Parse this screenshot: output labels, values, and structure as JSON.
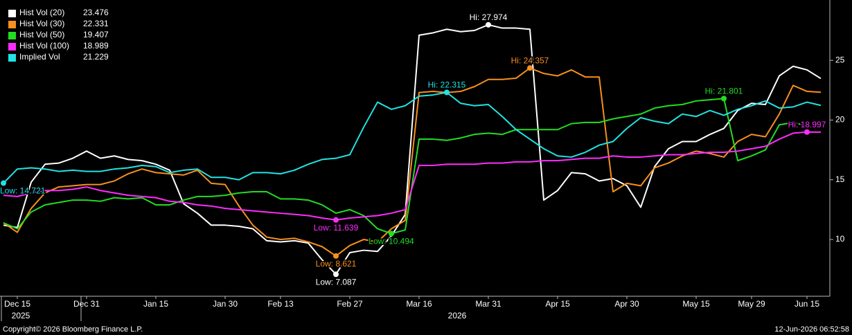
{
  "chart_data": {
    "type": "line",
    "categories": [
      null,
      "Dec 15",
      null,
      null,
      null,
      null,
      "Dec 31",
      null,
      null,
      null,
      null,
      "Jan 15",
      null,
      null,
      null,
      null,
      "Jan 30",
      null,
      null,
      null,
      "Feb 13",
      null,
      null,
      null,
      null,
      "Feb 27",
      null,
      null,
      null,
      null,
      "Mar 16",
      null,
      null,
      null,
      null,
      "Mar 31",
      null,
      null,
      null,
      null,
      "Apr 15",
      null,
      null,
      null,
      null,
      "Apr 30",
      null,
      null,
      null,
      null,
      "May 15",
      null,
      null,
      null,
      "May 29",
      null,
      null,
      null,
      "Jun 15",
      null
    ],
    "year_labels": [
      "2025",
      "2026"
    ],
    "ylim": [
      5.25,
      30.05
    ],
    "yticks": [
      10,
      15,
      20,
      25
    ],
    "series": [
      {
        "name": "Hist Vol (20)",
        "color": "#ffffff",
        "values": [
          11.2,
          11.0,
          14.8,
          16.3,
          16.4,
          16.8,
          17.4,
          16.8,
          17.0,
          16.7,
          16.6,
          16.3,
          15.8,
          13.0,
          12.2,
          11.2,
          11.2,
          11.1,
          10.9,
          9.9,
          9.8,
          9.9,
          9.7,
          8.3,
          7.087,
          8.9,
          9.1,
          9.0,
          10.3,
          12.1,
          27.1,
          27.3,
          27.6,
          27.4,
          27.5,
          27.974,
          27.7,
          27.7,
          27.6,
          13.3,
          14.1,
          15.6,
          15.5,
          14.9,
          15.1,
          14.5,
          12.7,
          16.1,
          17.6,
          18.2,
          18.2,
          18.8,
          19.3,
          20.8,
          21.4,
          21.3,
          23.7,
          24.5,
          24.2,
          23.476
        ],
        "value_labels": [
          null,
          null,
          null,
          null,
          null,
          null,
          null,
          null,
          null,
          null,
          null,
          null,
          null,
          null,
          null,
          null,
          null,
          null,
          null,
          null,
          null,
          null,
          null,
          null,
          "Low: 7.087",
          null,
          null,
          null,
          null,
          null,
          null,
          null,
          null,
          null,
          null,
          "Hi: 27.974",
          null,
          null,
          null,
          null,
          null,
          null,
          null,
          null,
          null,
          null,
          null,
          null,
          null,
          null,
          null,
          null,
          null,
          null,
          null,
          null,
          null,
          null,
          null,
          null
        ]
      },
      {
        "name": "Hist Vol (30)",
        "color": "#f7901e",
        "values": [
          11.4,
          10.6,
          12.6,
          13.9,
          14.4,
          14.5,
          14.6,
          14.6,
          14.9,
          15.5,
          15.9,
          15.6,
          15.5,
          15.4,
          15.8,
          14.7,
          14.6,
          12.8,
          11.2,
          10.2,
          10.0,
          10.1,
          9.8,
          9.4,
          8.621,
          9.5,
          10.0,
          9.8,
          10.9,
          11.6,
          22.3,
          22.4,
          22.3,
          22.4,
          22.8,
          23.4,
          23.4,
          23.5,
          24.357,
          23.9,
          23.7,
          24.2,
          23.6,
          23.6,
          14.0,
          14.7,
          14.5,
          16.0,
          16.4,
          17.0,
          17.4,
          17.2,
          16.9,
          18.2,
          18.8,
          18.6,
          20.5,
          22.9,
          22.4,
          22.331
        ],
        "value_labels": [
          null,
          null,
          null,
          null,
          null,
          null,
          null,
          null,
          null,
          null,
          null,
          null,
          null,
          null,
          null,
          null,
          null,
          null,
          null,
          null,
          null,
          null,
          null,
          null,
          "Low: 8.621",
          null,
          null,
          null,
          null,
          null,
          null,
          null,
          null,
          null,
          null,
          null,
          null,
          null,
          "Hi: 24.357",
          null,
          null,
          null,
          null,
          null,
          null,
          null,
          null,
          null,
          null,
          null,
          null,
          null,
          null,
          null,
          null,
          null,
          null,
          null,
          null,
          null
        ]
      },
      {
        "name": "Hist Vol (50)",
        "color": "#22dd22",
        "values": [
          11.4,
          10.9,
          12.3,
          12.9,
          13.1,
          13.3,
          13.3,
          13.2,
          13.5,
          13.4,
          13.5,
          12.9,
          12.9,
          13.3,
          13.6,
          13.6,
          13.7,
          13.9,
          14.0,
          14.0,
          13.4,
          13.4,
          13.3,
          12.9,
          12.2,
          12.5,
          12.0,
          10.9,
          10.494,
          10.8,
          18.4,
          18.4,
          18.3,
          18.5,
          18.8,
          18.9,
          18.8,
          19.2,
          19.2,
          19.2,
          19.2,
          19.7,
          19.8,
          19.8,
          20.1,
          20.3,
          20.5,
          21.0,
          21.2,
          21.3,
          21.6,
          21.7,
          21.801,
          16.6,
          17.0,
          17.5,
          19.6,
          19.8,
          19.5,
          19.407
        ],
        "value_labels": [
          null,
          null,
          null,
          null,
          null,
          null,
          null,
          null,
          null,
          null,
          null,
          null,
          null,
          null,
          null,
          null,
          null,
          null,
          null,
          null,
          null,
          null,
          null,
          null,
          null,
          null,
          null,
          null,
          "Low: 10.494",
          null,
          null,
          null,
          null,
          null,
          null,
          null,
          null,
          null,
          null,
          null,
          null,
          null,
          null,
          null,
          null,
          null,
          null,
          null,
          null,
          null,
          null,
          null,
          "Hi: 21.801",
          null,
          null,
          null,
          null,
          null,
          null,
          null
        ]
      },
      {
        "name": "Hist Vol (100)",
        "color": "#ff2cff",
        "values": [
          13.7,
          13.6,
          13.9,
          14.1,
          14.1,
          14.2,
          14.4,
          14.1,
          13.9,
          13.7,
          13.6,
          13.5,
          13.2,
          13.1,
          12.9,
          12.8,
          12.6,
          12.5,
          12.4,
          12.3,
          12.2,
          12.1,
          12.0,
          11.8,
          11.639,
          11.8,
          11.9,
          12.0,
          12.2,
          12.5,
          16.2,
          16.2,
          16.3,
          16.3,
          16.3,
          16.4,
          16.4,
          16.5,
          16.5,
          16.6,
          16.6,
          16.7,
          16.8,
          16.8,
          17.0,
          16.9,
          16.9,
          17.0,
          17.1,
          17.1,
          17.2,
          17.3,
          17.3,
          17.4,
          17.6,
          17.8,
          18.4,
          18.9,
          18.997,
          18.989
        ],
        "value_labels": [
          null,
          null,
          null,
          null,
          null,
          null,
          null,
          null,
          null,
          null,
          null,
          null,
          null,
          null,
          null,
          null,
          null,
          null,
          null,
          null,
          null,
          null,
          null,
          null,
          "Low: 11.639",
          null,
          null,
          null,
          null,
          null,
          null,
          null,
          null,
          null,
          null,
          null,
          null,
          null,
          null,
          null,
          null,
          null,
          null,
          null,
          null,
          null,
          null,
          null,
          null,
          null,
          null,
          null,
          null,
          null,
          null,
          null,
          null,
          null,
          "Hi: 18.997",
          null
        ]
      },
      {
        "name": "Implied Vol",
        "color": "#22e3e3",
        "values": [
          14.721,
          15.9,
          16.0,
          15.9,
          15.7,
          15.8,
          15.7,
          15.7,
          15.9,
          16.0,
          16.2,
          16.1,
          15.6,
          15.8,
          15.9,
          15.2,
          15.2,
          15.0,
          15.6,
          15.6,
          15.5,
          15.8,
          16.3,
          16.7,
          16.8,
          17.1,
          19.4,
          21.5,
          20.9,
          21.2,
          22.0,
          22.1,
          22.315,
          21.4,
          21.2,
          21.3,
          20.3,
          19.2,
          18.4,
          17.6,
          17.0,
          16.9,
          17.3,
          17.9,
          18.2,
          19.3,
          20.2,
          19.9,
          19.7,
          20.5,
          20.3,
          20.8,
          20.4,
          20.9,
          21.2,
          21.6,
          21.0,
          21.1,
          21.5,
          21.229
        ],
        "value_labels": [
          "Low: 14.721",
          null,
          null,
          null,
          null,
          null,
          null,
          null,
          null,
          null,
          null,
          null,
          null,
          null,
          null,
          null,
          null,
          null,
          null,
          null,
          null,
          null,
          null,
          null,
          null,
          null,
          null,
          null,
          null,
          null,
          null,
          null,
          "Hi: 22.315",
          null,
          null,
          null,
          null,
          null,
          null,
          null,
          null,
          null,
          null,
          null,
          null,
          null,
          null,
          null,
          null,
          null,
          null,
          null,
          null,
          null,
          null,
          null,
          null,
          null,
          null,
          null
        ]
      }
    ]
  },
  "footer": {
    "source": "Copyright© 2026 Bloomberg Finance L.P.",
    "timestamp": "12-Jun-2026 06:52:58"
  }
}
